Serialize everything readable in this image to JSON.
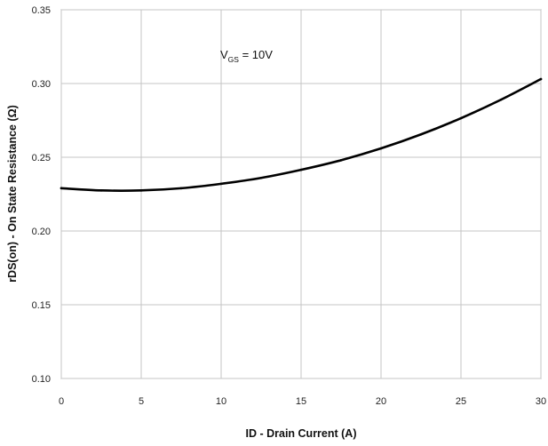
{
  "chart_data": {
    "type": "line",
    "xlabel": "ID - Drain Current (A)",
    "ylabel": "rDS(on) - On State Resistance (Ω)",
    "xlim": [
      0,
      30
    ],
    "ylim": [
      0.1,
      0.35
    ],
    "x_ticks": [
      "0",
      "5",
      "10",
      "15",
      "20",
      "25",
      "30"
    ],
    "y_ticks": [
      "0.10",
      "0.15",
      "0.20",
      "0.25",
      "0.30",
      "0.35"
    ],
    "grid": true,
    "annotation": {
      "main": "V",
      "sub": "GS",
      "rest": " = 10V"
    },
    "series": [
      {
        "color": "#000000",
        "x": [
          0,
          2.5,
          5,
          7.5,
          10,
          12.5,
          15,
          17.5,
          20,
          22.5,
          25,
          27.5,
          30
        ],
        "y": [
          0.229,
          0.2275,
          0.2275,
          0.229,
          0.232,
          0.236,
          0.2415,
          0.248,
          0.256,
          0.2655,
          0.2765,
          0.289,
          0.303
        ]
      }
    ]
  }
}
